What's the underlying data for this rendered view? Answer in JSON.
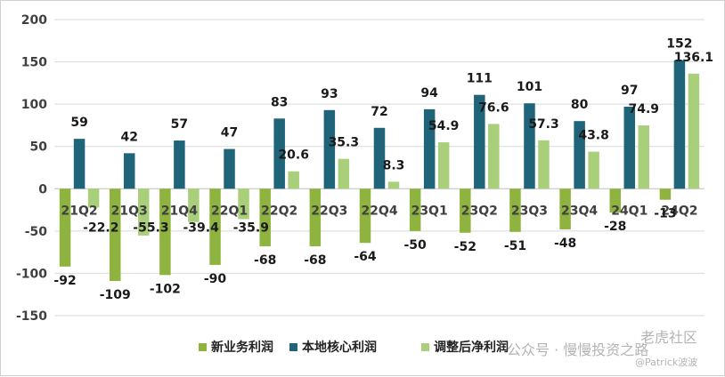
{
  "chart_data": {
    "type": "bar",
    "categories": [
      "21Q2",
      "21Q3",
      "21Q4",
      "22Q1",
      "22Q2",
      "22Q3",
      "22Q4",
      "23Q1",
      "23Q2",
      "23Q3",
      "23Q4",
      "24Q1",
      "24Q2"
    ],
    "series": [
      {
        "name": "新业务利润",
        "color": "#8fb33f",
        "values": [
          -92,
          -109,
          -102,
          -90,
          -68,
          -68,
          -64,
          -50,
          -52,
          -51,
          -48,
          -28,
          -13
        ]
      },
      {
        "name": "本地核心利润",
        "color": "#1f6478",
        "values": [
          59,
          42,
          57,
          47,
          83,
          93,
          72,
          94,
          111,
          101,
          80,
          97,
          152
        ]
      },
      {
        "name": "调整后净利润",
        "color": "#a9cf7a",
        "values": [
          -22.2,
          -55.3,
          -39.4,
          -35.9,
          20.6,
          35.3,
          8.3,
          54.9,
          76.6,
          57.3,
          43.8,
          74.9,
          136.1
        ]
      }
    ],
    "data_labels": [
      [
        "-92",
        "-109",
        "-102",
        "-90",
        "-68",
        "-68",
        "-64",
        "-50",
        "-52",
        "-51",
        "-48",
        "-28",
        "-13"
      ],
      [
        "59",
        "42",
        "57",
        "47",
        "83",
        "93",
        "72",
        "94",
        "111",
        "101",
        "80",
        "97",
        "152"
      ],
      [
        "-22.2",
        "-55.3",
        "-39.4",
        "-35.9",
        "20.6",
        "35.3",
        "8.3",
        "54.9",
        "76.6",
        "57.3",
        "43.8",
        "74.9",
        "136.1"
      ]
    ],
    "ylim": [
      -150,
      200
    ],
    "yticks": [
      "200",
      "150",
      "100",
      "50",
      "0",
      "-50",
      "-100",
      "-150"
    ],
    "grid": true,
    "legend_position": "bottom"
  },
  "watermark": {
    "line1": "老虎社区",
    "line2": "公众号 · 慢慢投资之路",
    "line3": "@Patrick波波"
  }
}
